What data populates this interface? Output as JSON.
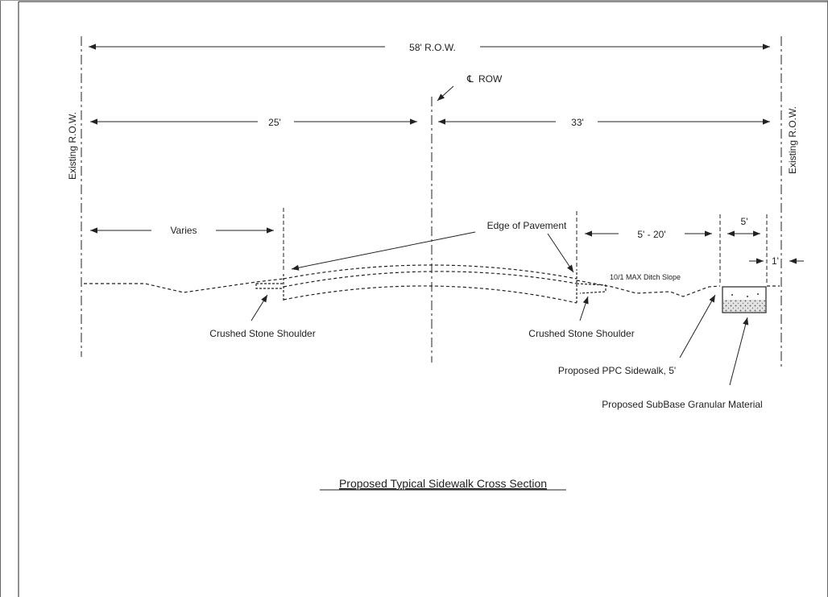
{
  "labels": {
    "total_row": "58'  R.O.W.",
    "centerline_symbol": "℄",
    "centerline_text": "ROW",
    "left_width": "25'",
    "right_width": "33'",
    "existing_row_left": "Existing R.O.W.",
    "existing_row_right": "Existing R.O.W.",
    "varies": "Varies",
    "edge_of_pavement": "Edge of Pavement",
    "ditch_width": "5' - 20'",
    "sidewalk_width": "5'",
    "offset": "1'",
    "ditch_slope": "10/1 MAX Ditch Slope",
    "crushed_stone_left": "Crushed Stone Shoulder",
    "crushed_stone_right": "Crushed Stone Shoulder",
    "sidewalk_callout": "Proposed PPC Sidewalk, 5'",
    "subbase_callout": "Proposed SubBase Granular Material",
    "title": "Proposed Typical Sidewalk Cross Section"
  },
  "colors": {
    "line": "#222222",
    "border": "#666666",
    "subbase_fill": "#d8d8d8"
  }
}
